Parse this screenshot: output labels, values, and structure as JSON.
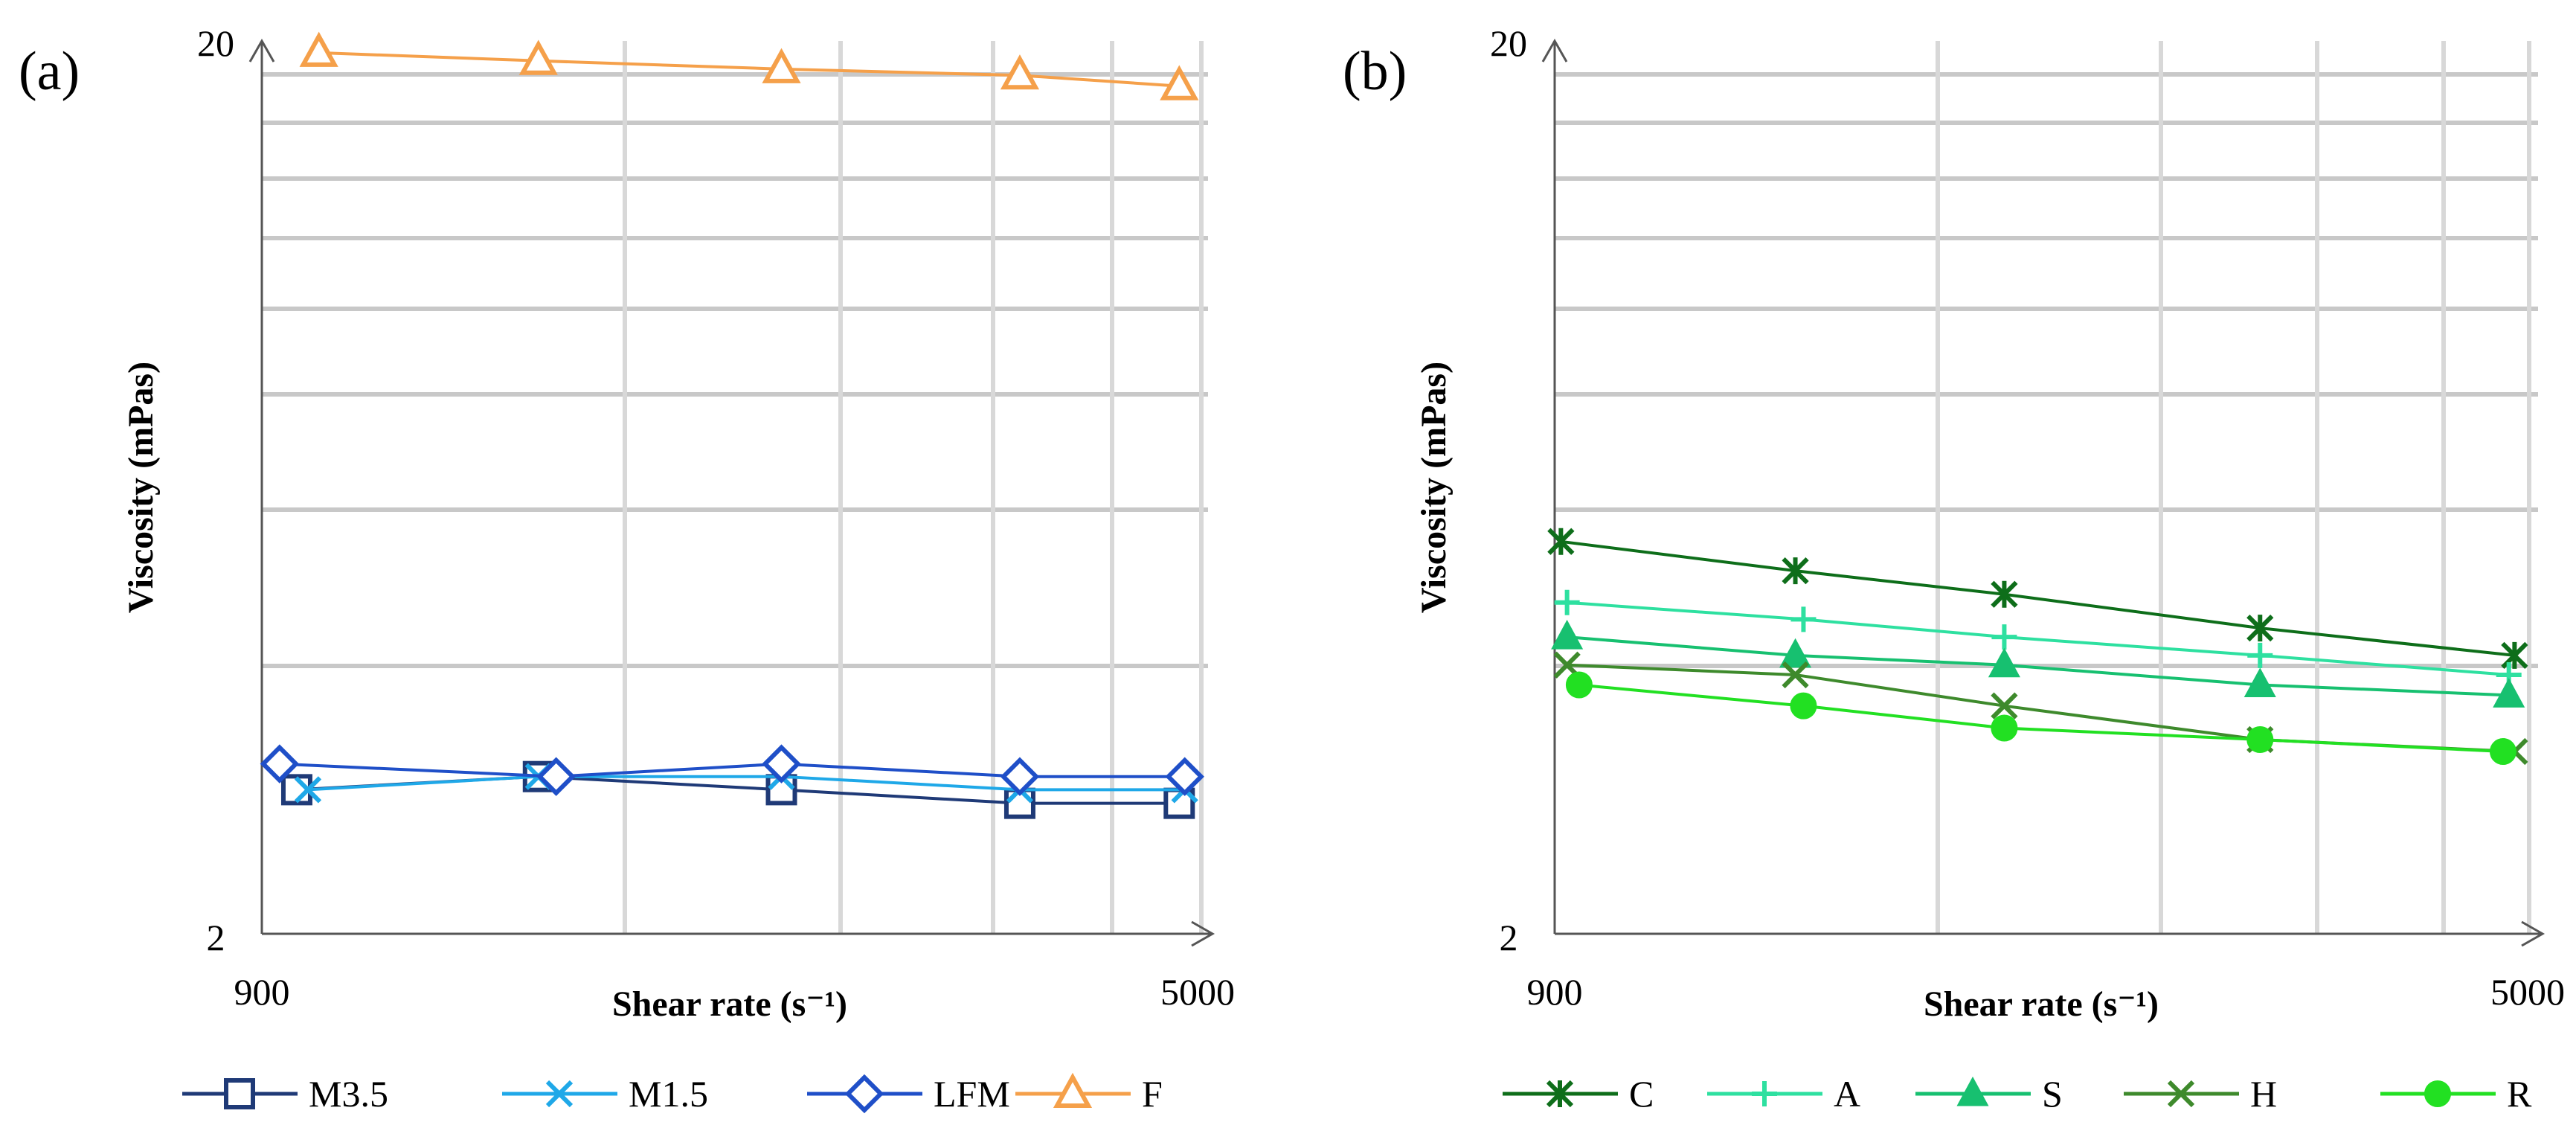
{
  "chart_data": [
    {
      "panel_label": "(a)",
      "type": "line",
      "x_scale": "log",
      "y_scale": "log",
      "xlabel": "Shear rate (s⁻¹)",
      "ylabel": "Viscosity (mPas)",
      "xlim": [
        900,
        5000
      ],
      "ylim": [
        2,
        20
      ],
      "x_tick_labels": [
        "900",
        "5000"
      ],
      "y_tick_labels": [
        "2",
        "20"
      ],
      "legend_position": "bottom",
      "series": [
        {
          "name": "M3.5",
          "color": "#1f3a77",
          "marker": "square",
          "x": [
            960,
            1500,
            2350,
            3650,
            4900
          ],
          "y": [
            2.9,
            3.0,
            2.9,
            2.8,
            2.8
          ]
        },
        {
          "name": "M1.5",
          "color": "#1fa8e8",
          "marker": "x",
          "x": [
            980,
            1500,
            2350,
            3650,
            4950
          ],
          "y": [
            2.9,
            3.0,
            3.0,
            2.9,
            2.9
          ]
        },
        {
          "name": "LFM",
          "color": "#1f4fc8",
          "marker": "diamond",
          "x": [
            930,
            1550,
            2350,
            3650,
            4950
          ],
          "y": [
            3.1,
            3.0,
            3.1,
            3.0,
            3.0
          ]
        },
        {
          "name": "F",
          "color": "#f5a04a",
          "marker": "triangle",
          "x": [
            1000,
            1500,
            2350,
            3650,
            4900
          ],
          "y": [
            19.4,
            19.0,
            18.6,
            18.3,
            17.8
          ]
        }
      ]
    },
    {
      "panel_label": "(b)",
      "type": "line",
      "x_scale": "log",
      "y_scale": "log",
      "xlabel": "Shear rate (s⁻¹)",
      "ylabel": "Viscosity (mPas)",
      "xlim": [
        900,
        5000
      ],
      "ylim": [
        2,
        20
      ],
      "x_tick_labels": [
        "900",
        "5000"
      ],
      "y_tick_labels": [
        "2",
        "20"
      ],
      "legend_position": "bottom",
      "series": [
        {
          "name": "C",
          "color": "#0e6e1a",
          "marker": "star",
          "x": [
            910,
            1380,
            2000,
            3150,
            4950
          ],
          "y": [
            5.5,
            5.1,
            4.8,
            4.4,
            4.1
          ]
        },
        {
          "name": "A",
          "color": "#2ee0a0",
          "marker": "plus",
          "x": [
            920,
            1400,
            2000,
            3150,
            4900
          ],
          "y": [
            4.7,
            4.5,
            4.3,
            4.1,
            3.9
          ]
        },
        {
          "name": "S",
          "color": "#17c070",
          "marker": "triangle",
          "x": [
            920,
            1380,
            2000,
            3150,
            4900
          ],
          "y": [
            4.3,
            4.1,
            4.0,
            3.8,
            3.7
          ]
        },
        {
          "name": "H",
          "color": "#3e8a2c",
          "marker": "x",
          "x": [
            920,
            1380,
            2000,
            3150,
            4950
          ],
          "y": [
            4.0,
            3.9,
            3.6,
            3.3,
            3.2
          ]
        },
        {
          "name": "R",
          "color": "#22e022",
          "marker": "circle",
          "x": [
            940,
            1400,
            2000,
            3150,
            4850
          ],
          "y": [
            3.8,
            3.6,
            3.4,
            3.3,
            3.2
          ]
        }
      ]
    }
  ]
}
